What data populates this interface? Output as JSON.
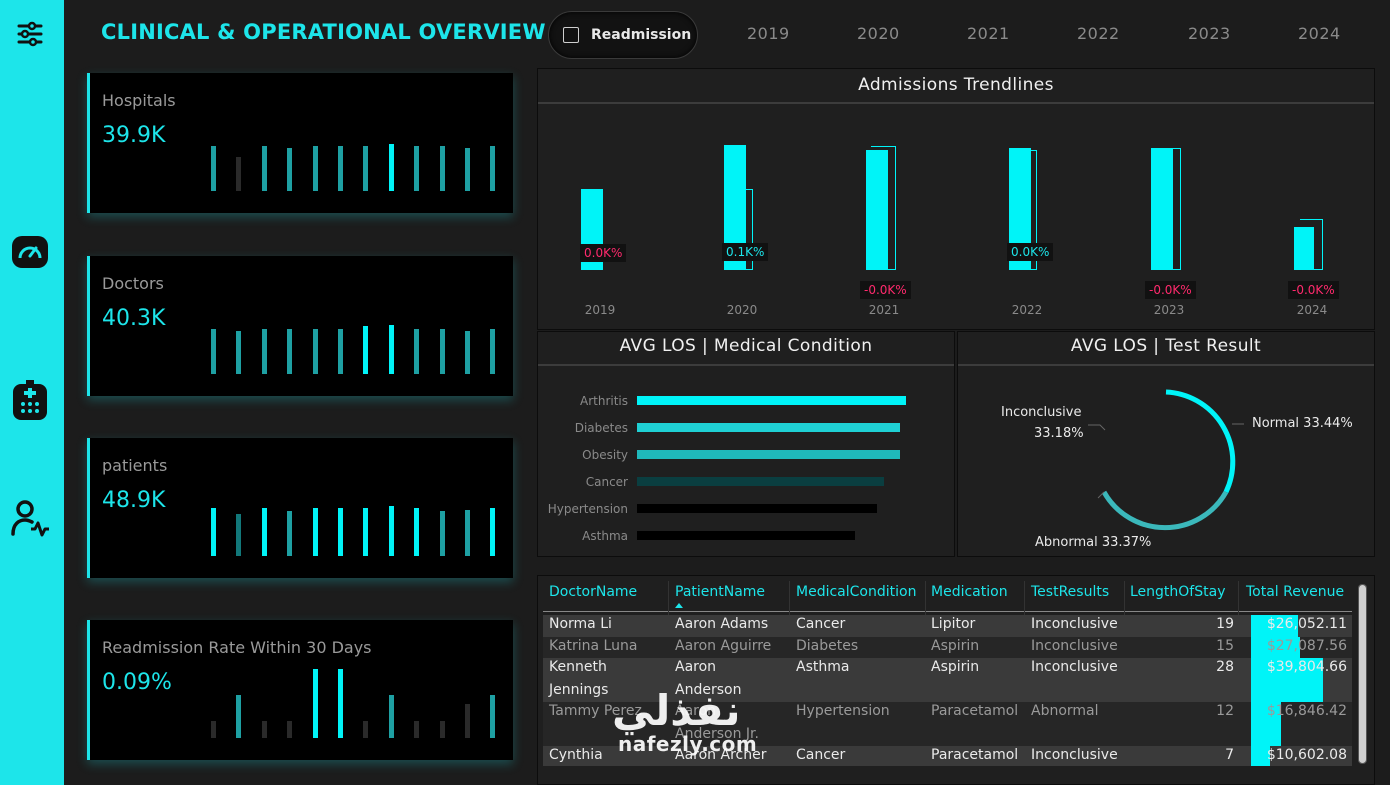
{
  "header": {
    "title": "CLINICAL & OPERATIONAL OVERVIEW",
    "readmission_label": "Readmission",
    "years": [
      "2019",
      "2020",
      "2021",
      "2022",
      "2023",
      "2024"
    ]
  },
  "kpis": [
    {
      "label": "Hospitals",
      "value": "39.9K",
      "bars": [
        0.65,
        0.48,
        0.65,
        0.62,
        0.65,
        0.65,
        0.65,
        0.67,
        0.65,
        0.65,
        0.62,
        0.65
      ]
    },
    {
      "label": "Doctors",
      "value": "40.3K",
      "bars": [
        0.65,
        0.62,
        0.65,
        0.65,
        0.65,
        0.65,
        0.68,
        0.7,
        0.65,
        0.65,
        0.62,
        0.65
      ]
    },
    {
      "label": "patients",
      "value": "48.9K",
      "bars": [
        0.69,
        0.6,
        0.69,
        0.65,
        0.69,
        0.69,
        0.69,
        0.72,
        0.69,
        0.65,
        0.66,
        0.69
      ]
    },
    {
      "label": "Readmission Rate Within 30 Days",
      "value": "0.09%",
      "bars": [
        0.25,
        0.62,
        0.25,
        0.25,
        0.98,
        0.98,
        0.25,
        0.62,
        0.25,
        0.25,
        0.48,
        0.62
      ]
    }
  ],
  "trend": {
    "title": "Admissions Trendlines",
    "labels": [
      "0.0K%",
      "0.1K%",
      "-0.0K%",
      "0.0K%",
      "-0.0K%",
      "-0.0K%"
    ],
    "label_colors": [
      "#ff2a6d",
      "#1de5ea",
      "#ff2a6d",
      "#1de5ea",
      "#ff2a6d",
      "#ff2a6d"
    ],
    "years": [
      "2019",
      "2020",
      "2021",
      "2022",
      "2023",
      "2024"
    ]
  },
  "los_condition": {
    "title": "AVG LOS | Medical Condition",
    "conditions": [
      "Arthritis",
      "Diabetes",
      "Obesity",
      "Cancer",
      "Hypertension",
      "Asthma"
    ],
    "values": [
      15.6,
      15.5,
      15.5,
      15.4,
      15.5,
      15.3
    ],
    "colors": [
      "#00f4f8",
      "#1fd0d4",
      "#1fb8bb",
      "#0a3e40",
      "#000000",
      "#000000"
    ]
  },
  "los_test": {
    "title": "AVG LOS | Test Result",
    "inconclusive": "Inconclusive",
    "inconclusive_pct": "33.18%",
    "normal": "Normal 33.44%",
    "abnormal": "Abnormal 33.37%",
    "shares": {
      "normal": 33.44,
      "abnormal": 33.37,
      "inconclusive": 33.18
    }
  },
  "table": {
    "headers": [
      "DoctorName",
      "PatientName",
      "MedicalCondition",
      "Medication",
      "TestResults",
      "LengthOfStay",
      "Total Revenue"
    ],
    "rows": [
      {
        "doctor": "Norma Li",
        "patient": "Aaron Adams",
        "condition": "Cancer",
        "medication": "Lipitor",
        "test": "Inconclusive",
        "los": "19",
        "revenue": "$26,052.11"
      },
      {
        "doctor": "Katrina Luna",
        "patient": "Aaron Aguirre",
        "condition": "Diabetes",
        "medication": "Aspirin",
        "test": "Inconclusive",
        "los": "15",
        "revenue": "$27,087.56"
      },
      {
        "doctor": "Kenneth",
        "doctor2": "Jennings",
        "patient": "Aaron",
        "patient2": "Anderson",
        "condition": "Asthma",
        "medication": "Aspirin",
        "test": "Inconclusive",
        "los": "28",
        "revenue": "$39,804.66"
      },
      {
        "doctor": "Tammy Perez",
        "patient": "Aaron",
        "patient2": "Anderson Jr.",
        "condition": "Hypertension",
        "medication": "Paracetamol",
        "test": "Abnormal",
        "los": "12",
        "revenue": "$16,846.42"
      },
      {
        "doctor": "Cynthia",
        "patient": "Aaron Archer",
        "condition": "Cancer",
        "medication": "Paracetamol",
        "test": "Inconclusive",
        "los": "7",
        "revenue": "$10,602.08"
      }
    ],
    "revenue_values": [
      26052.11,
      27087.56,
      39804.66,
      16846.42,
      10602.08
    ]
  },
  "watermark": {
    "arabic": "نفذلي",
    "latin": "nafezly.com"
  },
  "colors": {
    "accent": "#1de5ea",
    "negative": "#ff2a6d",
    "bar": "#00f4f8"
  }
}
